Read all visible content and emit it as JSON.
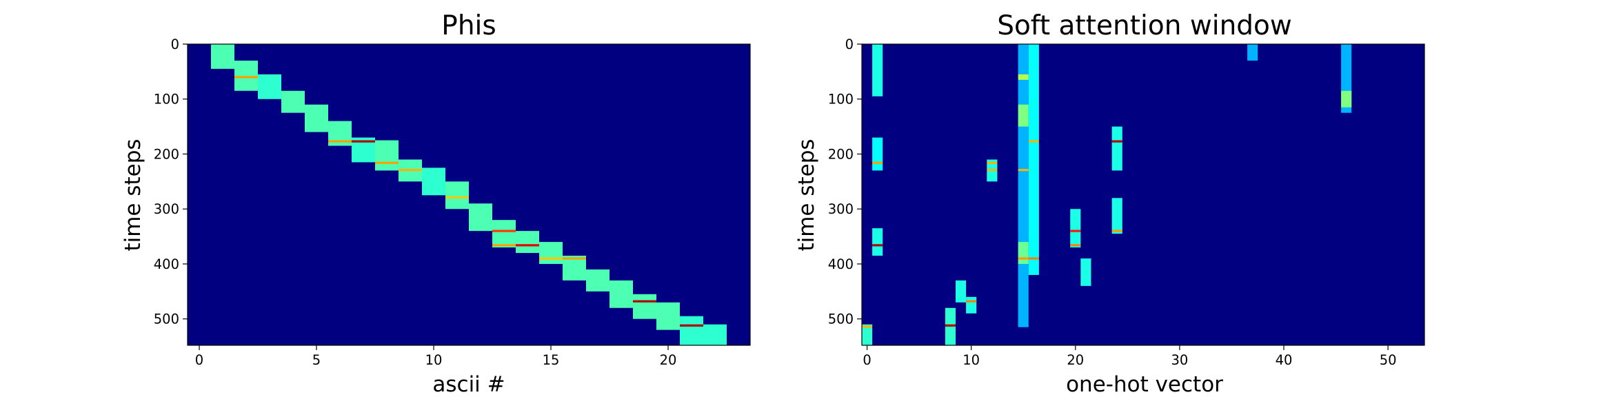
{
  "chart_data": [
    {
      "type": "heatmap",
      "title": "Phis",
      "xlabel": "ascii #",
      "ylabel": "time steps",
      "colormap": "jet",
      "x_range": [
        -0.5,
        23.5
      ],
      "y_range": [
        0,
        548
      ],
      "x_ticks": [
        0,
        5,
        10,
        15,
        20
      ],
      "y_ticks": [
        0,
        100,
        200,
        300,
        400,
        500
      ],
      "background_value": 0.0,
      "cells": [
        {
          "col": 1,
          "y0": 0,
          "y1": 45,
          "value": 0.45
        },
        {
          "col": 2,
          "y0": 30,
          "y1": 85,
          "value": 0.45
        },
        {
          "col": 2,
          "y0": 58,
          "y1": 62,
          "value": 0.72
        },
        {
          "col": 3,
          "y0": 55,
          "y1": 100,
          "value": 0.42
        },
        {
          "col": 4,
          "y0": 85,
          "y1": 125,
          "value": 0.45
        },
        {
          "col": 5,
          "y0": 110,
          "y1": 160,
          "value": 0.45
        },
        {
          "col": 6,
          "y0": 140,
          "y1": 185,
          "value": 0.45
        },
        {
          "col": 6,
          "y0": 175,
          "y1": 179,
          "value": 0.72
        },
        {
          "col": 7,
          "y0": 170,
          "y1": 215,
          "value": 0.42
        },
        {
          "col": 7,
          "y0": 175,
          "y1": 179,
          "value": 0.95
        },
        {
          "col": 8,
          "y0": 175,
          "y1": 230,
          "value": 0.45
        },
        {
          "col": 8,
          "y0": 214,
          "y1": 218,
          "value": 0.72
        },
        {
          "col": 9,
          "y0": 210,
          "y1": 250,
          "value": 0.45
        },
        {
          "col": 9,
          "y0": 227,
          "y1": 231,
          "value": 0.7
        },
        {
          "col": 10,
          "y0": 225,
          "y1": 275,
          "value": 0.42
        },
        {
          "col": 11,
          "y0": 250,
          "y1": 300,
          "value": 0.45
        },
        {
          "col": 11,
          "y0": 277,
          "y1": 281,
          "value": 0.68
        },
        {
          "col": 12,
          "y0": 290,
          "y1": 340,
          "value": 0.45
        },
        {
          "col": 13,
          "y0": 320,
          "y1": 370,
          "value": 0.45
        },
        {
          "col": 13,
          "y0": 338,
          "y1": 342,
          "value": 0.82
        },
        {
          "col": 13,
          "y0": 364,
          "y1": 368,
          "value": 0.72
        },
        {
          "col": 14,
          "y0": 340,
          "y1": 380,
          "value": 0.45
        },
        {
          "col": 14,
          "y0": 364,
          "y1": 368,
          "value": 0.9
        },
        {
          "col": 15,
          "y0": 360,
          "y1": 400,
          "value": 0.45
        },
        {
          "col": 15,
          "y0": 388,
          "y1": 392,
          "value": 0.68
        },
        {
          "col": 16,
          "y0": 385,
          "y1": 430,
          "value": 0.45
        },
        {
          "col": 16,
          "y0": 388,
          "y1": 392,
          "value": 0.72
        },
        {
          "col": 17,
          "y0": 410,
          "y1": 450,
          "value": 0.45
        },
        {
          "col": 18,
          "y0": 430,
          "y1": 480,
          "value": 0.45
        },
        {
          "col": 19,
          "y0": 455,
          "y1": 500,
          "value": 0.45
        },
        {
          "col": 19,
          "y0": 466,
          "y1": 470,
          "value": 0.95
        },
        {
          "col": 20,
          "y0": 470,
          "y1": 520,
          "value": 0.45
        },
        {
          "col": 21,
          "y0": 495,
          "y1": 548,
          "value": 0.42
        },
        {
          "col": 21,
          "y0": 510,
          "y1": 514,
          "value": 0.95
        },
        {
          "col": 22,
          "y0": 510,
          "y1": 548,
          "value": 0.42
        }
      ]
    },
    {
      "type": "heatmap",
      "title": "Soft attention window",
      "xlabel": "one-hot vector",
      "ylabel": "time steps",
      "colormap": "jet",
      "x_range": [
        -0.5,
        53.5
      ],
      "y_range": [
        0,
        548
      ],
      "x_ticks": [
        0,
        10,
        20,
        30,
        40,
        50
      ],
      "y_ticks": [
        0,
        100,
        200,
        300,
        400,
        500
      ],
      "background_value": 0.0,
      "cells": [
        {
          "col": 0,
          "y0": 510,
          "y1": 548,
          "value": 0.42
        },
        {
          "col": 0,
          "y0": 512,
          "y1": 516,
          "value": 0.7
        },
        {
          "col": 1,
          "y0": 0,
          "y1": 95,
          "value": 0.4
        },
        {
          "col": 1,
          "y0": 170,
          "y1": 230,
          "value": 0.38
        },
        {
          "col": 1,
          "y0": 214,
          "y1": 218,
          "value": 0.72
        },
        {
          "col": 1,
          "y0": 335,
          "y1": 385,
          "value": 0.4
        },
        {
          "col": 1,
          "y0": 364,
          "y1": 368,
          "value": 0.95
        },
        {
          "col": 8,
          "y0": 480,
          "y1": 548,
          "value": 0.42
        },
        {
          "col": 8,
          "y0": 510,
          "y1": 514,
          "value": 0.95
        },
        {
          "col": 9,
          "y0": 430,
          "y1": 470,
          "value": 0.4
        },
        {
          "col": 10,
          "y0": 460,
          "y1": 490,
          "value": 0.4
        },
        {
          "col": 10,
          "y0": 466,
          "y1": 470,
          "value": 0.75
        },
        {
          "col": 12,
          "y0": 210,
          "y1": 250,
          "value": 0.4
        },
        {
          "col": 12,
          "y0": 214,
          "y1": 218,
          "value": 0.7
        },
        {
          "col": 12,
          "y0": 227,
          "y1": 231,
          "value": 0.7
        },
        {
          "col": 15,
          "y0": 0,
          "y1": 515,
          "value": 0.3
        },
        {
          "col": 15,
          "y0": 55,
          "y1": 65,
          "value": 0.55
        },
        {
          "col": 15,
          "y0": 110,
          "y1": 150,
          "value": 0.5
        },
        {
          "col": 15,
          "y0": 227,
          "y1": 231,
          "value": 0.7
        },
        {
          "col": 15,
          "y0": 360,
          "y1": 400,
          "value": 0.48
        },
        {
          "col": 15,
          "y0": 388,
          "y1": 392,
          "value": 0.72
        },
        {
          "col": 16,
          "y0": 0,
          "y1": 420,
          "value": 0.38
        },
        {
          "col": 16,
          "y0": 175,
          "y1": 179,
          "value": 0.7
        },
        {
          "col": 16,
          "y0": 388,
          "y1": 392,
          "value": 0.75
        },
        {
          "col": 20,
          "y0": 300,
          "y1": 370,
          "value": 0.4
        },
        {
          "col": 20,
          "y0": 338,
          "y1": 342,
          "value": 0.85
        },
        {
          "col": 20,
          "y0": 364,
          "y1": 368,
          "value": 0.75
        },
        {
          "col": 21,
          "y0": 390,
          "y1": 440,
          "value": 0.4
        },
        {
          "col": 24,
          "y0": 150,
          "y1": 230,
          "value": 0.4
        },
        {
          "col": 24,
          "y0": 175,
          "y1": 179,
          "value": 0.95
        },
        {
          "col": 24,
          "y0": 280,
          "y1": 345,
          "value": 0.4
        },
        {
          "col": 24,
          "y0": 338,
          "y1": 342,
          "value": 0.72
        },
        {
          "col": 37,
          "y0": 0,
          "y1": 30,
          "value": 0.3
        },
        {
          "col": 46,
          "y0": 0,
          "y1": 125,
          "value": 0.3
        },
        {
          "col": 46,
          "y0": 85,
          "y1": 115,
          "value": 0.5
        }
      ]
    }
  ]
}
